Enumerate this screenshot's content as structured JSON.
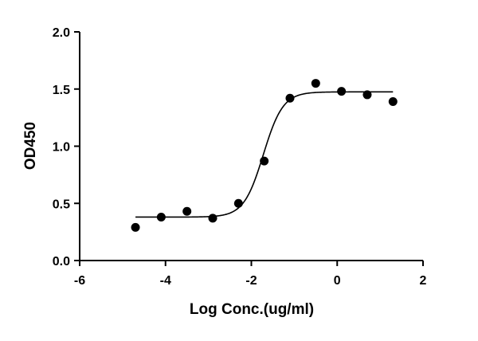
{
  "chart_data": {
    "type": "scatter",
    "xlabel": "Log Conc.(ug/ml)",
    "ylabel": "OD450",
    "xlim": [
      -6,
      2
    ],
    "ylim": [
      0,
      2
    ],
    "x_ticks": [
      -6,
      -4,
      -2,
      0,
      2
    ],
    "y_ticks": [
      0,
      0.5,
      1.0,
      1.5,
      2.0
    ],
    "x_tick_labels": [
      "-6",
      "-4",
      "-2",
      "0",
      "2"
    ],
    "y_tick_labels": [
      "0.0",
      "0.5",
      "1.0",
      "1.5",
      "2.0"
    ],
    "grid": false,
    "legend": "none",
    "colors": {
      "points": "#000000",
      "curve": "#000000",
      "axes": "#000000"
    },
    "series": [
      {
        "values_x": [
          -4.7,
          -4.1,
          -3.5,
          -2.9,
          -2.3,
          -1.7,
          -1.1,
          -0.5,
          0.1,
          0.7,
          1.3
        ],
        "values_y": [
          0.29,
          0.38,
          0.43,
          0.37,
          0.5,
          0.87,
          1.42,
          1.55,
          1.48,
          1.45,
          1.39
        ]
      }
    ],
    "fit": {
      "model": "4PL",
      "bottom": 0.38,
      "top": 1.475,
      "log_ec50": -1.72,
      "hill_slope": 1.9,
      "x_range": [
        -4.7,
        1.3
      ]
    }
  }
}
